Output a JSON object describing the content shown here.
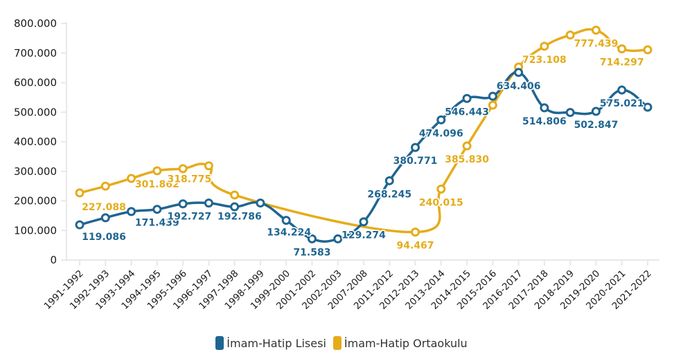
{
  "chart_data": {
    "type": "line",
    "title": "",
    "xlabel": "",
    "ylabel": "",
    "ylim": [
      0,
      800000
    ],
    "yticks": [
      0,
      100000,
      200000,
      300000,
      400000,
      500000,
      600000,
      700000,
      800000
    ],
    "ytick_labels": [
      "0",
      "100.000",
      "200.000",
      "300.000",
      "400.000",
      "500.000",
      "600.000",
      "700.000",
      "800.000"
    ],
    "grid": false,
    "legend_position": "bottom-center",
    "categories": [
      "1991-1992",
      "1992-1993",
      "1993-1994",
      "1994-1995",
      "1995-1996",
      "1996-1997",
      "1997-1998",
      "1998-1999",
      "1999-2000",
      "2001-2002",
      "2002-2003",
      "2007-2008",
      "2011-2012",
      "2012-2013",
      "2013-2014",
      "2014-2015",
      "2015-2016",
      "2016-2017",
      "2017-2018",
      "2018-2019",
      "2019-2020",
      "2020-2021",
      "2021-2022"
    ],
    "series": [
      {
        "name": "İmam-Hatip Lisesi",
        "color": "#1f6591",
        "values": [
          119086,
          143000,
          164000,
          171439,
          190000,
          192727,
          180000,
          192786,
          134224,
          71583,
          71583,
          129274,
          268245,
          380771,
          474096,
          546443,
          554000,
          634406,
          514806,
          499000,
          502847,
          575021,
          517000
        ],
        "labels": [
          "119.086",
          null,
          null,
          "171.439",
          null,
          "192.727",
          null,
          "192.786",
          "134.224",
          "71.583",
          null,
          "129.274",
          "268.245",
          "380.771",
          "474.096",
          "546.443",
          null,
          "634.406",
          "514.806",
          null,
          "502.847",
          "575.021",
          null
        ]
      },
      {
        "name": "İmam-Hatip Ortaokulu",
        "color": "#e5ac1a",
        "values": [
          227088,
          250000,
          276000,
          301862,
          309000,
          318775,
          220000,
          null,
          null,
          null,
          null,
          null,
          null,
          94467,
          240015,
          385830,
          524000,
          653000,
          723108,
          761000,
          777439,
          714297,
          711000
        ],
        "labels": [
          "227.088",
          null,
          null,
          "301.862",
          null,
          "318.775",
          null,
          null,
          null,
          null,
          null,
          null,
          null,
          "94.467",
          "240.015",
          "385.830",
          null,
          null,
          "723.108",
          null,
          "777.439",
          "714.297",
          null
        ]
      }
    ]
  },
  "legend": {
    "items": [
      {
        "label": "İmam-Hatip Lisesi",
        "color": "#1f6591"
      },
      {
        "label": "İmam-Hatip Ortaokulu",
        "color": "#e5ac1a"
      }
    ]
  }
}
